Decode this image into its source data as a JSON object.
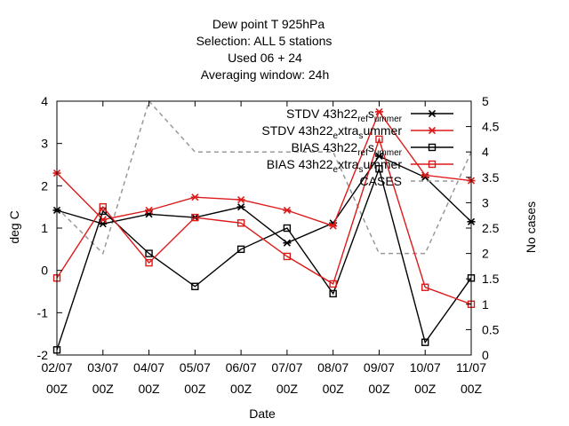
{
  "chart_data": {
    "type": "line",
    "title_lines": [
      "Dew point T 925hPa",
      "Selection: ALL       5 stations",
      "Used  06  + 24",
      "Averaging window: 24h"
    ],
    "xlabel": "Date",
    "ylabel": "deg C",
    "y2label": "No cases",
    "categories": [
      [
        "02/07",
        "00Z"
      ],
      [
        "03/07",
        "00Z"
      ],
      [
        "04/07",
        "00Z"
      ],
      [
        "05/07",
        "00Z"
      ],
      [
        "06/07",
        "00Z"
      ],
      [
        "07/07",
        "00Z"
      ],
      [
        "08/07",
        "00Z"
      ],
      [
        "09/07",
        "00Z"
      ],
      [
        "10/07",
        "00Z"
      ],
      [
        "11/07",
        "00Z"
      ]
    ],
    "ylim": [
      -2,
      4
    ],
    "yticks": [
      "-2",
      "-1",
      "0",
      "1",
      "2",
      "3",
      "4"
    ],
    "y2lim": [
      0,
      5
    ],
    "y2ticks": [
      "0",
      "0.5",
      "1",
      "1.5",
      "2",
      "2.5",
      "3",
      "3.5",
      "4",
      "4.5",
      "5"
    ],
    "legend_position": "top-right",
    "series": [
      {
        "name": "STDV 43h22_ref_summer",
        "legend_parts": [
          "STDV 43h22",
          "ref",
          "s",
          "ummer"
        ],
        "color": "#000000",
        "marker": "star",
        "axis": "y",
        "dashed": false,
        "values": [
          1.42,
          1.1,
          1.33,
          1.25,
          1.5,
          0.65,
          1.12,
          2.7,
          2.2,
          1.15
        ]
      },
      {
        "name": "STDV 43h22_extra_summer",
        "legend_parts": [
          "STDV 43h22",
          "e",
          "xtra",
          "s",
          "ummer"
        ],
        "color": "#dd1a1a",
        "marker": "star",
        "axis": "y",
        "dashed": false,
        "values": [
          2.3,
          1.2,
          1.42,
          1.73,
          1.67,
          1.42,
          1.05,
          3.75,
          2.25,
          2.12
        ]
      },
      {
        "name": "BIAS 43h22_ref_summer",
        "legend_parts": [
          "BIAS 43h22",
          "ref",
          "s",
          "ummer"
        ],
        "color": "#000000",
        "marker": "square",
        "axis": "y",
        "dashed": false,
        "values": [
          -1.88,
          1.4,
          0.4,
          -0.38,
          0.5,
          1.0,
          -0.55,
          2.4,
          -1.7,
          -0.18
        ]
      },
      {
        "name": "BIAS 43h22_extra_summer",
        "legend_parts": [
          "BIAS 43h22",
          "e",
          "xtra",
          "s",
          "ummer"
        ],
        "color": "#dd1a1a",
        "marker": "square",
        "axis": "y",
        "dashed": false,
        "values": [
          -0.18,
          1.5,
          0.18,
          1.25,
          1.12,
          0.33,
          -0.32,
          3.1,
          -0.4,
          -0.8
        ]
      },
      {
        "name": "CASES",
        "legend_parts": [
          "CASES"
        ],
        "color": "#999999",
        "marker": "none",
        "axis": "y2",
        "dashed": true,
        "values": [
          2.9,
          2.0,
          5.0,
          4.0,
          4.0,
          4.0,
          4.0,
          2.0,
          2.0,
          4.0
        ]
      }
    ]
  }
}
